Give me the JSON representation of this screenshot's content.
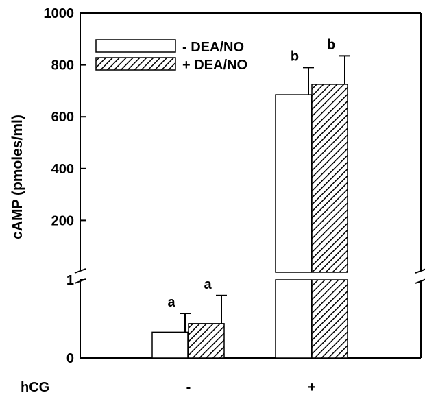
{
  "chart_data": {
    "type": "bar",
    "ylabel": "cAMP (pmoles/ml)",
    "x_row_label": "hCG",
    "categories": [
      "-",
      "+"
    ],
    "y_axis": {
      "broken": true,
      "upper_segment": {
        "range": [
          0,
          1000
        ],
        "ticks": [
          "200",
          "400",
          "600",
          "800",
          "1000"
        ]
      },
      "lower_segment": {
        "range": [
          0,
          1
        ],
        "ticks": [
          "0",
          "1"
        ]
      }
    },
    "legend": {
      "placement": "top-left"
    },
    "series": [
      {
        "name": "- DEA/NO",
        "pattern": "open",
        "values": [
          0.33,
          685
        ],
        "errors": [
          0.24,
          105
        ],
        "letters": [
          "a",
          "b"
        ],
        "segment": [
          "lower",
          "upper"
        ]
      },
      {
        "name": "+ DEA/NO",
        "pattern": "hatched",
        "values": [
          0.44,
          725
        ],
        "errors": [
          0.36,
          110
        ],
        "letters": [
          "a",
          "b"
        ],
        "segment": [
          "lower",
          "upper"
        ]
      }
    ]
  }
}
